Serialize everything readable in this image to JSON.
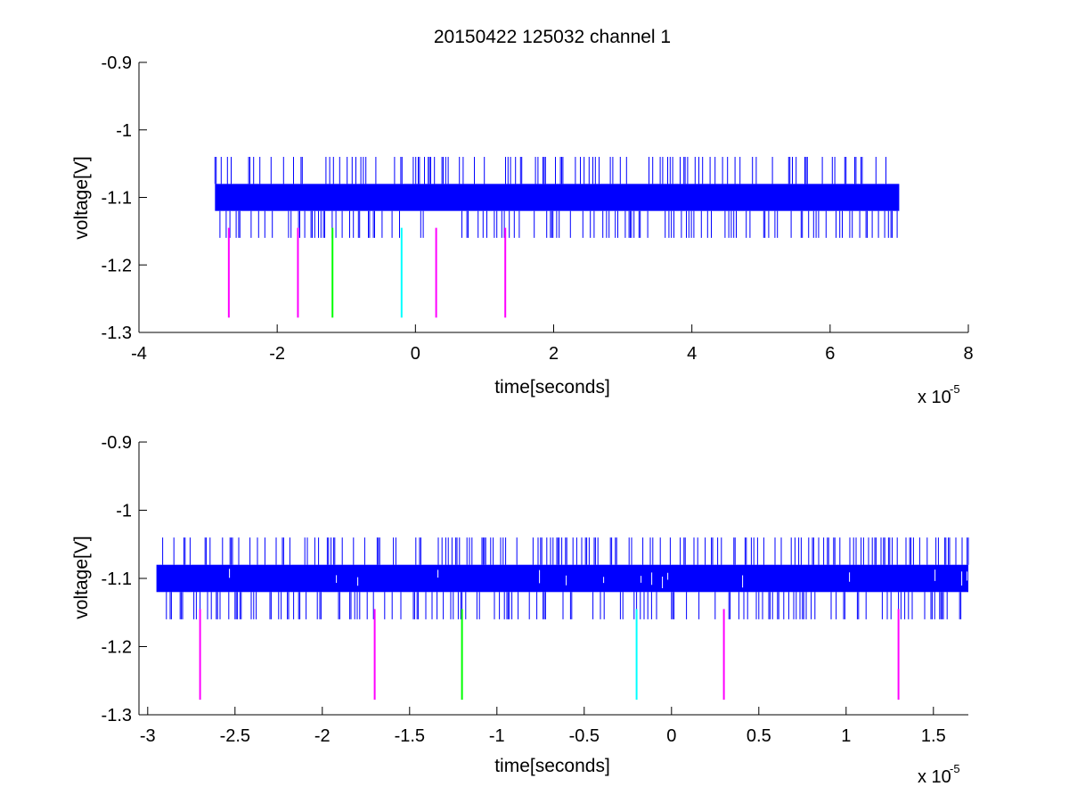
{
  "chart_data": [
    {
      "type": "line",
      "title": "20150422 125032 channel 1",
      "xlabel": "time[seconds]",
      "ylabel": "voltage[V]",
      "x_exponent_base": "x 10",
      "x_exponent_power": "-5",
      "xlim": [
        -4,
        8
      ],
      "ylim": [
        -1.3,
        -0.9
      ],
      "xticks": [
        -4,
        -2,
        0,
        2,
        4,
        6,
        8
      ],
      "xtick_labels": [
        "-4",
        "-2",
        "0",
        "2",
        "4",
        "6",
        "8"
      ],
      "yticks": [
        -1.3,
        -1.2,
        -1.1,
        -1,
        -0.9
      ],
      "ytick_labels": [
        "-1.3",
        "-1.2",
        "-1.1",
        "-1",
        "-0.9"
      ],
      "signal": {
        "color": "#0000ff",
        "x_range": [
          -2.9,
          7.0
        ],
        "band": [
          -1.12,
          -1.08
        ],
        "spike_high": -1.04,
        "spike_low": -1.16
      },
      "markers": [
        {
          "x": -2.7,
          "y_top": -1.145,
          "y_bottom": -1.278,
          "color": "#ff00ff"
        },
        {
          "x": -1.7,
          "y_top": -1.145,
          "y_bottom": -1.278,
          "color": "#ff00ff"
        },
        {
          "x": -1.2,
          "y_top": -1.145,
          "y_bottom": -1.278,
          "color": "#00ff00"
        },
        {
          "x": -0.2,
          "y_top": -1.145,
          "y_bottom": -1.278,
          "color": "#00ffff"
        },
        {
          "x": 0.3,
          "y_top": -1.145,
          "y_bottom": -1.278,
          "color": "#ff00ff"
        },
        {
          "x": 1.3,
          "y_top": -1.145,
          "y_bottom": -1.278,
          "color": "#ff00ff"
        }
      ]
    },
    {
      "type": "line",
      "title": "",
      "xlabel": "time[seconds]",
      "ylabel": "voltage[V]",
      "x_exponent_base": "x 10",
      "x_exponent_power": "-5",
      "xlim": [
        -3.05,
        1.7
      ],
      "ylim": [
        -1.3,
        -0.9
      ],
      "xticks": [
        -3,
        -2.5,
        -2,
        -1.5,
        -1,
        -0.5,
        0,
        0.5,
        1,
        1.5
      ],
      "xtick_labels": [
        "-3",
        "-2.5",
        "-2",
        "-1.5",
        "-1",
        "-0.5",
        "0",
        "0.5",
        "1",
        "1.5"
      ],
      "yticks": [
        -1.3,
        -1.2,
        -1.1,
        -1,
        -0.9
      ],
      "ytick_labels": [
        "-1.3",
        "-1.2",
        "-1.1",
        "-1",
        "-0.9"
      ],
      "signal": {
        "color": "#0000ff",
        "x_range": [
          -2.95,
          1.7
        ],
        "band": [
          -1.12,
          -1.08
        ],
        "spike_high": -1.04,
        "spike_low": -1.16
      },
      "markers": [
        {
          "x": -2.7,
          "y_top": -1.145,
          "y_bottom": -1.278,
          "color": "#ff00ff"
        },
        {
          "x": -1.7,
          "y_top": -1.145,
          "y_bottom": -1.278,
          "color": "#ff00ff"
        },
        {
          "x": -1.2,
          "y_top": -1.145,
          "y_bottom": -1.278,
          "color": "#00ff00"
        },
        {
          "x": -0.2,
          "y_top": -1.145,
          "y_bottom": -1.278,
          "color": "#00ffff"
        },
        {
          "x": 0.3,
          "y_top": -1.145,
          "y_bottom": -1.278,
          "color": "#ff00ff"
        },
        {
          "x": 1.3,
          "y_top": -1.145,
          "y_bottom": -1.278,
          "color": "#ff00ff"
        }
      ]
    }
  ]
}
